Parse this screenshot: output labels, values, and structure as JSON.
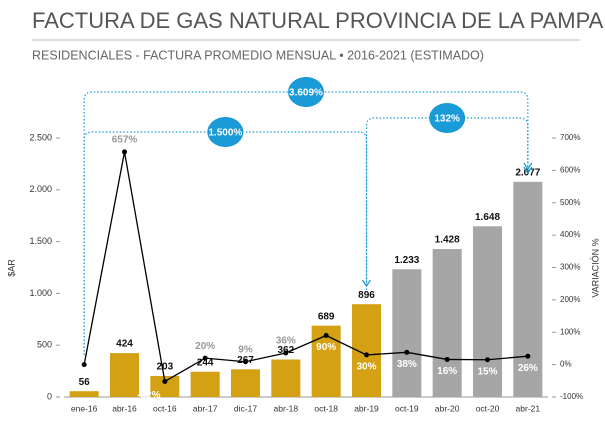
{
  "chart_data": {
    "type": "bar-line",
    "title": "FACTURA DE GAS NATURAL PROVINCIA DE LA PAMPA",
    "subtitle": "RESIDENCIALES - FACTURA PROMEDIO MENSUAL • 2016-2021 (ESTIMADO)",
    "ylabel": "$AR",
    "y2label": "VARIACIÓN %",
    "categories": [
      "ene-16",
      "abr-16",
      "oct-16",
      "abr-17",
      "dic-17",
      "abr-18",
      "oct-18",
      "abr-19",
      "oct-19",
      "abr-20",
      "oct-20",
      "abr-21"
    ],
    "series": [
      {
        "type": "bar",
        "values": [
          56,
          424,
          203,
          244,
          267,
          362,
          689,
          896,
          1233,
          1428,
          1648,
          2077
        ],
        "value_labels": [
          "56",
          "424",
          "203",
          "244",
          "267",
          "362",
          "689",
          "896",
          "1.233",
          "1.428",
          "1.648",
          "2.077"
        ],
        "colors": [
          "#d4a114",
          "#d4a114",
          "#d4a114",
          "#d4a114",
          "#d4a114",
          "#d4a114",
          "#d4a114",
          "#d4a114",
          "#a6a6a6",
          "#a6a6a6",
          "#a6a6a6",
          "#a6a6a6"
        ]
      },
      {
        "type": "line",
        "axis": "y2",
        "color": "#000000",
        "values": [
          0,
          657,
          -52,
          20,
          9,
          36,
          90,
          30,
          38,
          16,
          15,
          26
        ],
        "value_labels": [
          null,
          "657%",
          "-52%",
          "20%",
          "9%",
          "36%",
          "90%",
          "30%",
          "38%",
          "16%",
          "15%",
          "26%"
        ]
      }
    ],
    "ylim": [
      0,
      2500
    ],
    "yticks": [
      0,
      500,
      {
        "value": 1000,
        "label": "1.000"
      },
      {
        "value": 1500,
        "label": "1.500"
      },
      {
        "value": 2000,
        "label": "2.000"
      },
      {
        "value": 2500,
        "label": "2.500"
      }
    ],
    "y2lim": [
      -100,
      700
    ],
    "y2ticks": [
      {
        "value": -100,
        "label": "-100%"
      },
      {
        "value": 0,
        "label": "0%"
      },
      {
        "value": 100,
        "label": "100%"
      },
      {
        "value": 200,
        "label": "200%"
      },
      {
        "value": 300,
        "label": "300%"
      },
      {
        "value": 400,
        "label": "400%"
      },
      {
        "value": 500,
        "label": "500%"
      },
      {
        "value": 600,
        "label": "600%"
      },
      {
        "value": 700,
        "label": "700%"
      }
    ],
    "annotations": [
      "3.609%",
      "1.500%",
      "132%"
    ],
    "annotation_color": "#1a9ad6"
  }
}
